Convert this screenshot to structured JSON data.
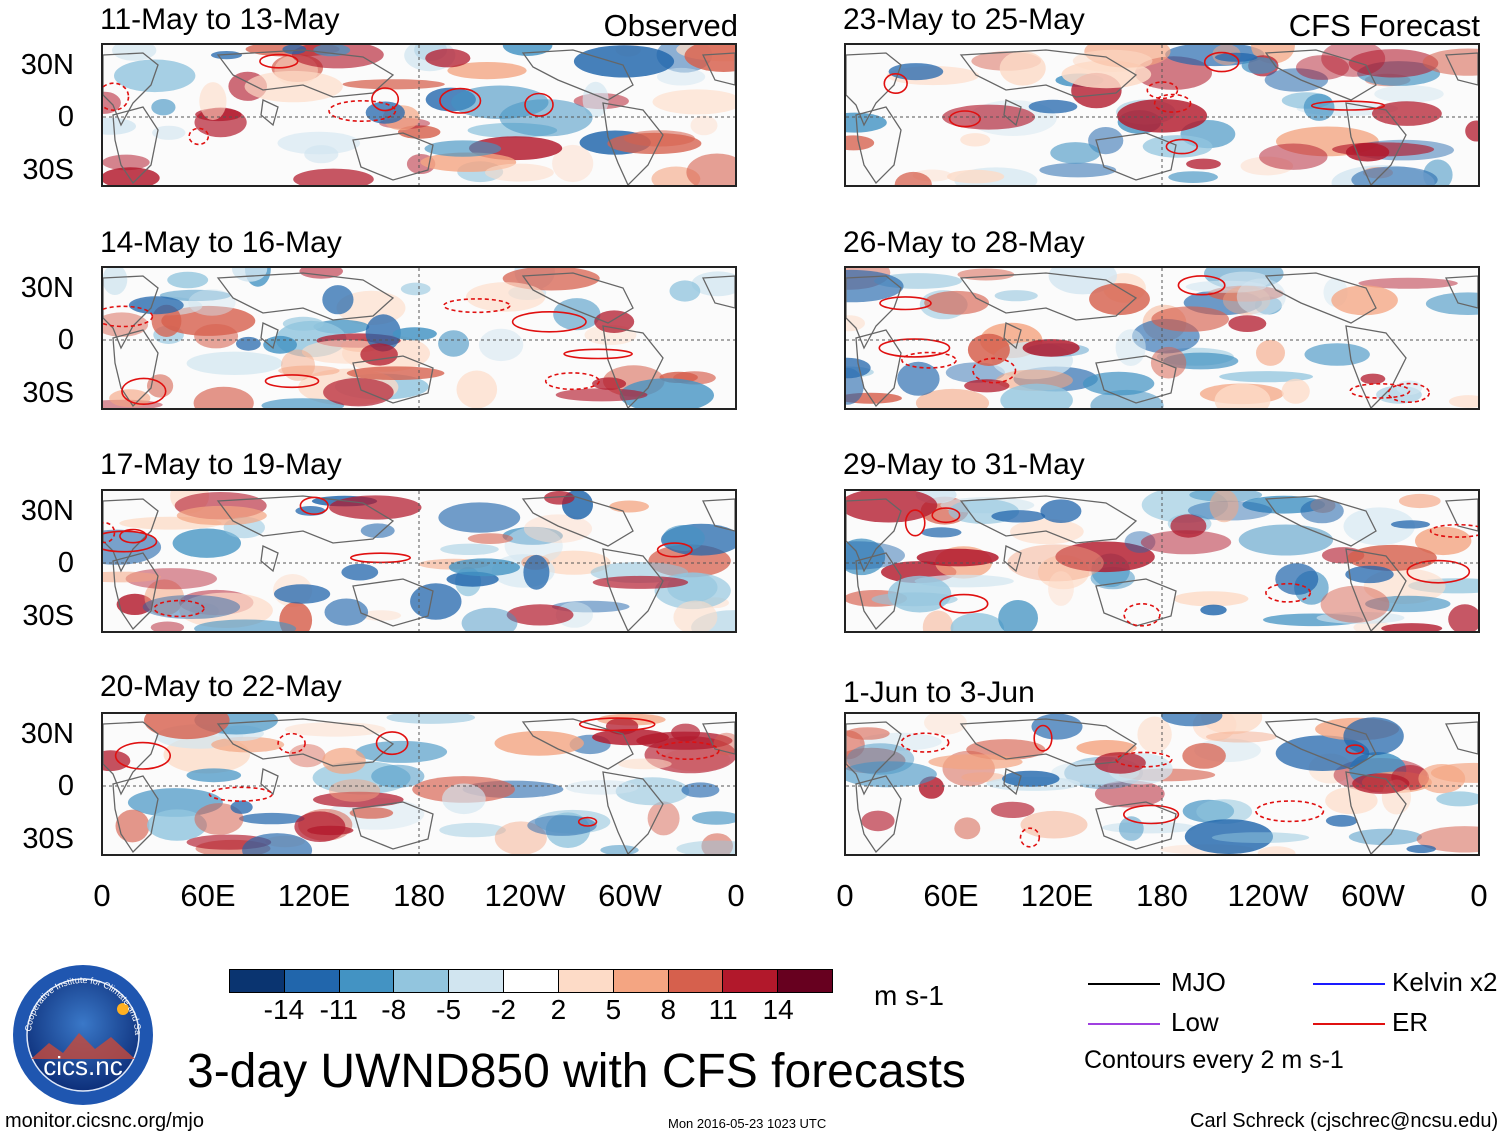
{
  "observed": {
    "tag": "Observed",
    "panels": [
      {
        "title": "11-May to 13-May"
      },
      {
        "title": "14-May to 16-May"
      },
      {
        "title": "17-May to 19-May"
      },
      {
        "title": "20-May to 22-May"
      }
    ]
  },
  "forecast": {
    "tag": "CFS Forecast",
    "panels": [
      {
        "title": "23-May to 25-May"
      },
      {
        "title": "26-May to 28-May"
      },
      {
        "title": "29-May to 31-May"
      },
      {
        "title": "1-Jun to 3-Jun"
      }
    ]
  },
  "lat_labels": [
    "30N",
    "0",
    "30S"
  ],
  "lon_labels": [
    "0",
    "60E",
    "120E",
    "180",
    "120W",
    "60W",
    "0"
  ],
  "colorbar": {
    "colors": [
      "#0a3470",
      "#2166ac",
      "#4393c3",
      "#92c5de",
      "#d1e5f0",
      "#ffffff",
      "#fddbc7",
      "#f4a582",
      "#d6604d",
      "#b2182b",
      "#67001f"
    ],
    "labels": [
      "-14",
      "-11",
      "-8",
      "-5",
      "-2",
      "2",
      "5",
      "8",
      "11",
      "14"
    ],
    "units": "m s-1"
  },
  "legend": {
    "items": [
      {
        "label": "MJO",
        "color": "#000000"
      },
      {
        "label": "Kelvin x2",
        "color": "#1a1aff"
      },
      {
        "label": "Low",
        "color": "#a040e0"
      },
      {
        "label": "ER",
        "color": "#e01010"
      }
    ],
    "contours_note": "Contours every 2 m s-1"
  },
  "main_title": "3-day UWND850 with CFS forecasts",
  "logo": {
    "text": "cics.nc",
    "ring_text": "Cooperative Institute for Climate and Satellites"
  },
  "footer": {
    "left": "monitor.cicsnc.org/mjo",
    "center": "Mon 2016-05-23 1023 UTC",
    "right": "Carl Schreck (cjschrec@ncsu.edu)"
  }
}
